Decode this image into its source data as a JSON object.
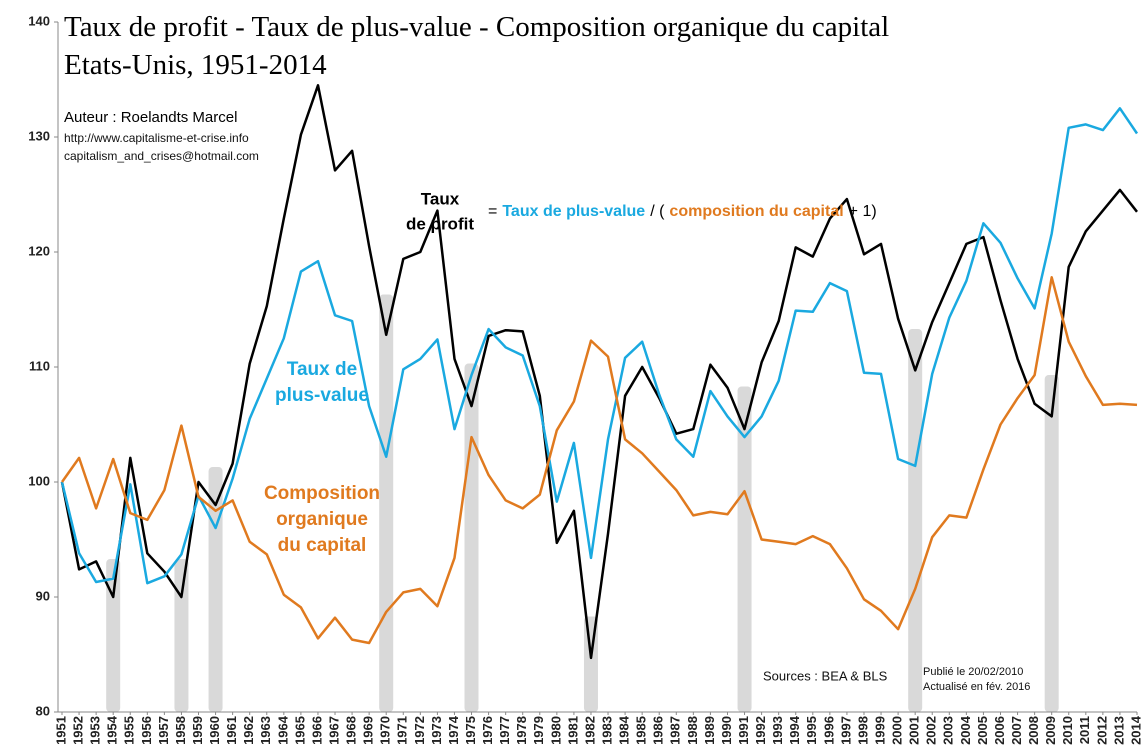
{
  "chart_data": {
    "type": "line",
    "title": "Taux de profit - Taux de plus-value - Composition organique du capital",
    "subtitle": "Etats-Unis, 1951-2014",
    "author": "Auteur : Roelandts Marcel",
    "website": "http://www.capitalisme-et-crise.info",
    "email": "capitalism_and_crises@hotmail.com",
    "formula": {
      "lhs": [
        "Taux",
        "de profit"
      ],
      "parts": [
        {
          "text": "=",
          "color": "#000000",
          "bold": false
        },
        {
          "text": "Taux de plus-value",
          "color": "#1aa9e0",
          "bold": true
        },
        {
          "text": "/ (",
          "color": "#000000",
          "bold": false
        },
        {
          "text": "composition du capital",
          "color": "#e07a1f",
          "bold": true
        },
        {
          "text": "+ 1)",
          "color": "#000000",
          "bold": false
        }
      ]
    },
    "sources": "Sources : BEA & BLS",
    "published": [
      "Publié le 20/02/2010",
      "Actualisé en fév. 2016"
    ],
    "x": [
      1951,
      1952,
      1953,
      1954,
      1955,
      1956,
      1957,
      1958,
      1959,
      1960,
      1961,
      1962,
      1963,
      1964,
      1965,
      1966,
      1967,
      1968,
      1969,
      1970,
      1971,
      1972,
      1973,
      1974,
      1975,
      1976,
      1977,
      1978,
      1979,
      1980,
      1981,
      1982,
      1983,
      1984,
      1985,
      1986,
      1987,
      1988,
      1989,
      1990,
      1991,
      1992,
      1993,
      1994,
      1995,
      1996,
      1997,
      1998,
      1999,
      2000,
      2001,
      2002,
      2003,
      2004,
      2005,
      2006,
      2007,
      2008,
      2009,
      2010,
      2011,
      2012,
      2013,
      2014
    ],
    "xlim": [
      1951,
      2014
    ],
    "ylim": [
      80,
      140
    ],
    "yticks": [
      80,
      90,
      100,
      110,
      120,
      130,
      140
    ],
    "bars": {
      "color": "#d9d9d9",
      "x": [
        1954,
        1958,
        1960,
        1970,
        1975,
        1982,
        1991,
        2001,
        2009
      ],
      "values": [
        93.3,
        93.3,
        101.3,
        116.3,
        110.3,
        88.3,
        108.3,
        113.3,
        109.3
      ]
    },
    "series": [
      {
        "color": "#000000",
        "values": [
          100,
          92.4,
          93.1,
          90.0,
          102.1,
          93.8,
          92.2,
          90.0,
          100.0,
          98.0,
          101.6,
          110.3,
          115.3,
          122.9,
          130.2,
          134.5,
          127.1,
          128.8,
          120.5,
          112.8,
          119.4,
          120.0,
          123.6,
          110.7,
          106.6,
          112.7,
          113.2,
          113.1,
          107.5,
          94.7,
          97.5,
          84.7,
          95.5,
          107.5,
          110.0,
          107.3,
          104.2,
          104.6,
          110.2,
          108.2,
          104.6,
          110.4,
          114.0,
          120.4,
          119.6,
          122.9,
          124.6,
          119.8,
          120.7,
          114.2,
          109.7,
          113.9,
          117.3,
          120.7,
          121.3,
          115.8,
          110.7,
          106.8,
          105.7,
          118.7,
          121.8,
          123.6,
          125.4,
          123.5
        ]
      },
      {
        "color": "#1aa9e0",
        "label_lines": [
          "Taux de",
          "plus-value"
        ],
        "values": [
          100,
          93.8,
          91.3,
          91.6,
          99.8,
          91.2,
          91.8,
          93.7,
          98.8,
          96.0,
          100.3,
          105.5,
          109.0,
          112.5,
          118.3,
          119.2,
          114.5,
          114.0,
          106.6,
          102.2,
          109.8,
          110.7,
          112.4,
          104.6,
          109.3,
          113.3,
          111.7,
          111.0,
          106.6,
          98.3,
          103.4,
          93.4,
          103.7,
          110.8,
          112.2,
          107.6,
          103.7,
          102.2,
          107.9,
          105.7,
          103.9,
          105.7,
          108.8,
          114.9,
          114.8,
          117.3,
          116.6,
          109.5,
          109.4,
          102.0,
          101.4,
          109.4,
          114.3,
          117.5,
          122.5,
          120.8,
          117.7,
          115.1,
          121.6,
          130.8,
          131.1,
          130.6,
          132.5,
          130.3
        ]
      },
      {
        "color": "#e07a1f",
        "label_lines": [
          "Composition",
          "organique",
          "du capital"
        ],
        "values": [
          100,
          102.1,
          97.7,
          102.0,
          97.3,
          96.7,
          99.3,
          104.9,
          98.7,
          97.5,
          98.4,
          94.8,
          93.7,
          90.2,
          89.1,
          86.4,
          88.2,
          86.3,
          86.0,
          88.7,
          90.4,
          90.7,
          89.2,
          93.4,
          103.9,
          100.6,
          98.4,
          97.7,
          98.9,
          104.5,
          107.0,
          112.3,
          110.9,
          103.7,
          102.5,
          100.9,
          99.3,
          97.1,
          97.4,
          97.2,
          99.2,
          95.0,
          94.8,
          94.6,
          95.3,
          94.6,
          92.5,
          89.8,
          88.8,
          87.2,
          90.7,
          95.2,
          97.1,
          96.9,
          101.1,
          105.0,
          107.3,
          109.3,
          117.8,
          112.2,
          109.2,
          106.7,
          106.8,
          106.7
        ]
      }
    ]
  }
}
